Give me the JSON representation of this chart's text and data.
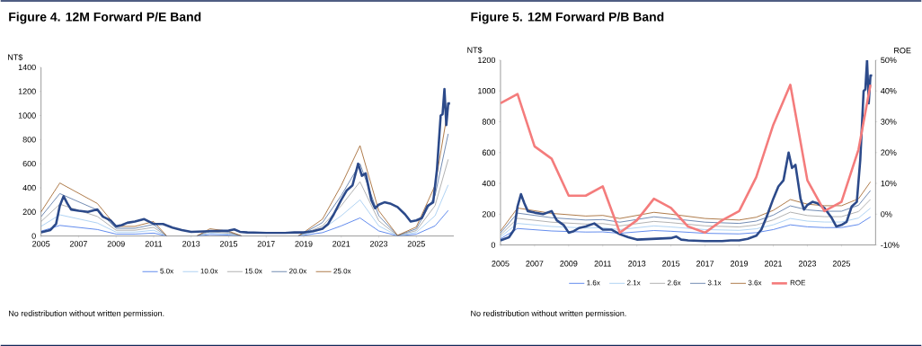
{
  "chart_data": [
    {
      "type": "line",
      "title": "Figure 4. 12M Forward P/E Band",
      "ylabel": "NT$",
      "annotations": [
        "No redistribution without written permission."
      ],
      "xlim": [
        2005,
        2027
      ],
      "xticks": [
        2005,
        2007,
        2009,
        2011,
        2013,
        2015,
        2017,
        2019,
        2021,
        2023,
        2025
      ],
      "ylim": [
        0,
        1400
      ],
      "yticks": [
        0,
        200,
        400,
        600,
        800,
        1000,
        1200,
        1400
      ],
      "legend": "bottom",
      "series": [
        {
          "name": "5.0x",
          "color": "#3b6fe8",
          "x": [
            2005,
            2006,
            2008,
            2009,
            2010,
            2011,
            2011.7,
            2012.5,
            2013.3,
            2014,
            2015,
            2015.7,
            2017,
            2018.7,
            2019,
            2020,
            2021,
            2022,
            2023,
            2024,
            2025,
            2026,
            2026.7
          ],
          "values": [
            40,
            88,
            54,
            16,
            16,
            24,
            0,
            null,
            0,
            12,
            8,
            0,
            null,
            0,
            6,
            28,
            84,
            150,
            42,
            1,
            15,
            84,
            212
          ]
        },
        {
          "name": "10.0x",
          "color": "#9cc8f0",
          "x": [
            2005,
            2006,
            2008,
            2009,
            2010,
            2011,
            2011.7,
            2012.5,
            2013.3,
            2014,
            2015,
            2015.7,
            2017,
            2018.7,
            2019,
            2020,
            2021,
            2022,
            2023,
            2024,
            2025,
            2026,
            2026.7
          ],
          "values": [
            80,
            176,
            108,
            32,
            32,
            48,
            0,
            null,
            0,
            24,
            16,
            0,
            null,
            0,
            12,
            56,
            168,
            300,
            84,
            2,
            30,
            168,
            424
          ]
        },
        {
          "name": "15.0x",
          "color": "#9e9e9e",
          "x": [
            2005,
            2006,
            2008,
            2009,
            2010,
            2011,
            2011.7,
            2012.5,
            2013.3,
            2014,
            2015,
            2015.7,
            2017,
            2018.7,
            2019,
            2020,
            2021,
            2022,
            2023,
            2024,
            2025,
            2026,
            2026.7
          ],
          "values": [
            120,
            264,
            162,
            48,
            48,
            72,
            0,
            null,
            0,
            36,
            24,
            0,
            null,
            0,
            18,
            84,
            252,
            450,
            126,
            3,
            45,
            252,
            636
          ]
        },
        {
          "name": "20.0x",
          "color": "#4f6f9f",
          "x": [
            2005,
            2006,
            2008,
            2009,
            2010,
            2011,
            2011.7,
            2012.5,
            2013.3,
            2014,
            2015,
            2015.7,
            2017,
            2018.7,
            2019,
            2020,
            2021,
            2022,
            2023,
            2024,
            2025,
            2026,
            2026.7
          ],
          "values": [
            160,
            352,
            216,
            64,
            64,
            96,
            0,
            null,
            0,
            48,
            32,
            0,
            null,
            0,
            24,
            112,
            336,
            600,
            168,
            4,
            60,
            336,
            848
          ]
        },
        {
          "name": "25.0x",
          "color": "#9a5b1e",
          "x": [
            2005,
            2006,
            2008,
            2009,
            2010,
            2011,
            2011.7,
            2012.5,
            2013.3,
            2014,
            2015,
            2015.7,
            2017,
            2018.7,
            2019,
            2020,
            2021,
            2022,
            2023,
            2024,
            2025,
            2026,
            2026.7
          ],
          "values": [
            200,
            440,
            270,
            80,
            80,
            120,
            0,
            null,
            0,
            60,
            40,
            0,
            null,
            0,
            30,
            140,
            420,
            750,
            210,
            5,
            75,
            420,
            1060
          ]
        },
        {
          "color": "#2c4a8a",
          "x": [
            2005,
            2005.5,
            2005.8,
            2006,
            2006.2,
            2006.4,
            2006.6,
            2007,
            2007.5,
            2008,
            2008.3,
            2008.7,
            2009,
            2009.3,
            2009.6,
            2010,
            2010.5,
            2011,
            2011.5,
            2012,
            2012.5,
            2013,
            2014,
            2015,
            2015.3,
            2015.6,
            2016,
            2017,
            2018,
            2018.5,
            2019,
            2019.5,
            2020,
            2020.3,
            2020.6,
            2021,
            2021.3,
            2021.6,
            2021.9,
            2022.1,
            2022.3,
            2022.6,
            2022.8,
            2023,
            2023.3,
            2023.6,
            2024,
            2024.4,
            2024.7,
            2025,
            2025.3,
            2025.6,
            2025.9,
            2026.1,
            2026.3,
            2026.4,
            2026.5,
            2026.6,
            2026.7,
            2026.8
          ],
          "values": [
            30,
            50,
            100,
            250,
            330,
            270,
            220,
            210,
            200,
            220,
            160,
            130,
            80,
            90,
            110,
            120,
            140,
            100,
            100,
            70,
            50,
            35,
            40,
            45,
            55,
            35,
            30,
            25,
            25,
            30,
            30,
            40,
            60,
            100,
            180,
            300,
            380,
            420,
            600,
            500,
            520,
            300,
            230,
            260,
            280,
            270,
            240,
            180,
            120,
            130,
            150,
            250,
            280,
            550,
            1000,
            1010,
            1220,
            920,
            1100,
            1100
          ]
        }
      ]
    },
    {
      "type": "line",
      "title": "Figure 5. 12M Forward P/B Band",
      "ylabel": "NT$",
      "y2label": "ROE",
      "annotations": [
        "No redistribution without written permission."
      ],
      "xlim": [
        2005,
        2027
      ],
      "xticks": [
        2005,
        2007,
        2009,
        2011,
        2013,
        2015,
        2017,
        2019,
        2021,
        2023,
        2025
      ],
      "ylim": [
        0,
        1200
      ],
      "yticks": [
        0,
        200,
        400,
        600,
        800,
        1000,
        1200
      ],
      "y2lim": [
        -10,
        50
      ],
      "y2ticks": [
        {
          "value": -10,
          "label": "-10%"
        },
        {
          "value": 0,
          "label": "0%"
        },
        {
          "value": 10,
          "label": "10%"
        },
        {
          "value": 20,
          "label": "20%"
        },
        {
          "value": 30,
          "label": "30%"
        },
        {
          "value": 40,
          "label": "40%"
        },
        {
          "value": 50,
          "label": "50%"
        }
      ],
      "legend": "bottom",
      "series": [
        {
          "name": "1.6x",
          "color": "#3b6fe8",
          "x": [
            2005,
            2006,
            2008,
            2010,
            2011,
            2012,
            2014,
            2015,
            2017,
            2019,
            2020,
            2021,
            2022,
            2023,
            2024,
            2025,
            2026,
            2026.7
          ],
          "values": [
            40,
            107,
            91,
            84,
            85,
            76,
            94,
            89,
            76,
            72,
            80,
            100,
            131,
            118,
            113,
            113,
            133,
            182
          ]
        },
        {
          "name": "2.1x",
          "color": "#9cc8f0",
          "x": [
            2005,
            2006,
            2008,
            2010,
            2011,
            2012,
            2014,
            2015,
            2017,
            2019,
            2020,
            2021,
            2022,
            2023,
            2024,
            2025,
            2026,
            2026.7
          ],
          "values": [
            53,
            140,
            120,
            110,
            112,
            100,
            124,
            117,
            100,
            95,
            105,
            131,
            172,
            155,
            149,
            149,
            175,
            239
          ]
        },
        {
          "name": "2.6x",
          "color": "#9e9e9e",
          "x": [
            2005,
            2006,
            2008,
            2010,
            2011,
            2012,
            2014,
            2015,
            2017,
            2019,
            2020,
            2021,
            2022,
            2023,
            2024,
            2025,
            2026,
            2026.7
          ],
          "values": [
            65,
            173,
            148,
            136,
            139,
            124,
            153,
            145,
            124,
            117,
            130,
            163,
            213,
            191,
            184,
            184,
            217,
            296
          ]
        },
        {
          "name": "3.1x",
          "color": "#4f6f9f",
          "x": [
            2005,
            2006,
            2008,
            2010,
            2011,
            2012,
            2014,
            2015,
            2017,
            2019,
            2020,
            2021,
            2022,
            2023,
            2024,
            2025,
            2026,
            2026.7
          ],
          "values": [
            78,
            207,
            177,
            162,
            165,
            148,
            183,
            172,
            148,
            140,
            155,
            194,
            254,
            228,
            219,
            219,
            258,
            353
          ]
        },
        {
          "name": "3.6x",
          "color": "#9a5b1e",
          "x": [
            2005,
            2006,
            2008,
            2010,
            2011,
            2012,
            2014,
            2015,
            2017,
            2019,
            2020,
            2021,
            2022,
            2023,
            2024,
            2025,
            2026,
            2026.7
          ],
          "values": [
            90,
            240,
            205,
            188,
            192,
            172,
            212,
            200,
            172,
            162,
            180,
            225,
            295,
            265,
            255,
            255,
            300,
            410
          ]
        },
        {
          "color": "#2c4a8a",
          "x": [
            2005,
            2005.5,
            2005.8,
            2006,
            2006.2,
            2006.4,
            2006.6,
            2007,
            2007.5,
            2008,
            2008.3,
            2008.7,
            2009,
            2009.3,
            2009.6,
            2010,
            2010.5,
            2011,
            2011.5,
            2012,
            2012.5,
            2013,
            2014,
            2015,
            2015.3,
            2015.6,
            2016,
            2017,
            2018,
            2018.5,
            2019,
            2019.5,
            2020,
            2020.3,
            2020.6,
            2021,
            2021.3,
            2021.6,
            2021.9,
            2022.1,
            2022.3,
            2022.6,
            2022.8,
            2023,
            2023.3,
            2023.6,
            2024,
            2024.4,
            2024.7,
            2025,
            2025.3,
            2025.6,
            2025.9,
            2026.1,
            2026.3,
            2026.4,
            2026.5,
            2026.6,
            2026.7,
            2026.8
          ],
          "values": [
            30,
            50,
            100,
            250,
            330,
            270,
            220,
            210,
            200,
            220,
            160,
            130,
            80,
            90,
            110,
            120,
            140,
            100,
            100,
            70,
            50,
            35,
            40,
            45,
            55,
            35,
            30,
            25,
            25,
            30,
            30,
            40,
            60,
            100,
            180,
            300,
            380,
            420,
            600,
            500,
            520,
            300,
            230,
            260,
            280,
            270,
            240,
            180,
            120,
            130,
            150,
            250,
            280,
            550,
            1000,
            1010,
            1200,
            920,
            1100,
            1100
          ]
        },
        {
          "name": "ROE",
          "color": "#f47c7c",
          "axis": "y2",
          "x": [
            2005,
            2006,
            2007,
            2008,
            2009,
            2010,
            2011,
            2012,
            2013,
            2014,
            2015,
            2016,
            2017,
            2018,
            2019,
            2020,
            2021,
            2022,
            2023,
            2024,
            2025,
            2026,
            2026.7
          ],
          "values": [
            36,
            39,
            22,
            18,
            6,
            6,
            9,
            -6,
            -2,
            5,
            2,
            -4,
            -6,
            -2,
            1,
            12,
            29,
            42,
            11,
            1,
            4,
            21,
            42
          ]
        }
      ]
    }
  ]
}
